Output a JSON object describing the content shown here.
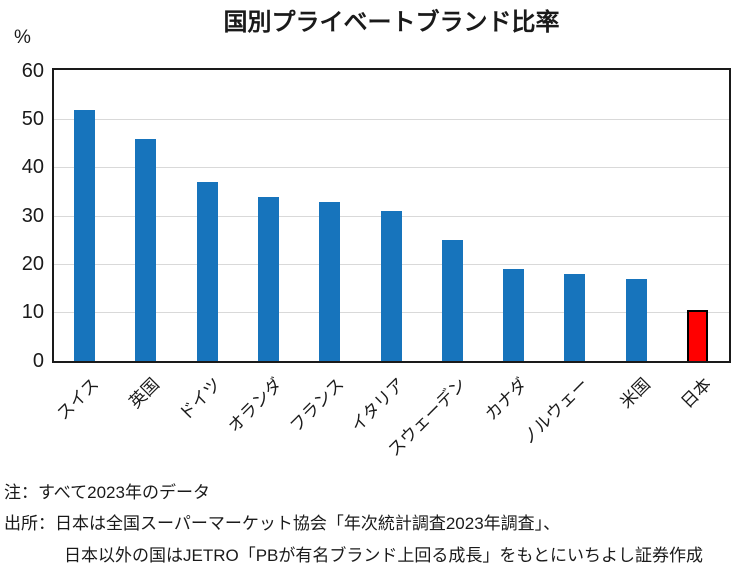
{
  "chart_data": {
    "type": "bar",
    "title": "国別プライベートブランド比率",
    "ylabel": "%",
    "xlabel": "",
    "ylim": [
      0,
      60
    ],
    "yticks": [
      0,
      10,
      20,
      30,
      40,
      50,
      60
    ],
    "grid": true,
    "legend_position": "none",
    "categories": [
      "スイス",
      "英国",
      "ドイツ",
      "オランダ",
      "フランス",
      "イタリア",
      "スウェーデン",
      "カナダ",
      "ノルウェー",
      "米国",
      "日本"
    ],
    "values": [
      52,
      46,
      37,
      34,
      33,
      31,
      25,
      19,
      18,
      17,
      10.5
    ],
    "highlight_category": "日本",
    "colors": {
      "bar_default": "#1774BC",
      "bar_highlight": "#FF0000",
      "bar_highlight_border": "#000000",
      "gridline": "#D9D9D9",
      "plot_border": "#1A1A1A",
      "text": "#1A1A1A"
    }
  },
  "notes": {
    "note_line": "注：すべて2023年のデータ",
    "source_line1": "出所：日本は全国スーパーマーケット協会「年次統計調査2023年調査」、",
    "source_line2": "日本以外の国はJETRO「PBが有名ブランド上回る成長」をもとにいちよし証券作成"
  }
}
